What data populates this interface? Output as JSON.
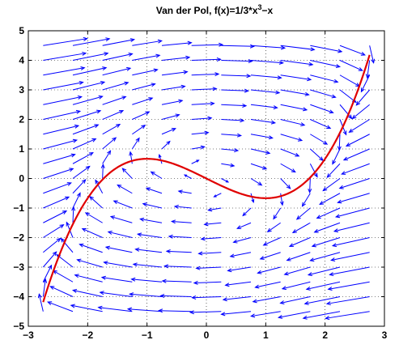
{
  "chart_data": {
    "type": "quiver",
    "title_main": "Van der Pol, f(x)=1/3*x",
    "title_sup": "3",
    "title_tail": "−x",
    "xlim": [
      -3,
      3
    ],
    "ylim": [
      -5,
      5
    ],
    "x_ticks": [
      -3,
      -2,
      -1,
      0,
      1,
      2,
      3
    ],
    "x_tick_labels": [
      "−3",
      "−2",
      "−1",
      "0",
      "1",
      "2",
      "3"
    ],
    "y_ticks": [
      -5,
      -4,
      -3,
      -2,
      -1,
      0,
      1,
      2,
      3,
      4,
      5
    ],
    "y_tick_labels": [
      "−5",
      "−4",
      "−3",
      "−2",
      "−1",
      "0",
      "1",
      "2",
      "3",
      "4",
      "5"
    ],
    "grid": true,
    "grid_style": "dotted",
    "vector_field": {
      "system": "x' = y - (x^3/3 - x), y' = -x",
      "x_range": [
        -2.75,
        2.75
      ],
      "x_count": 12,
      "y_range": [
        -4.5,
        4.5
      ],
      "y_count": 19,
      "color": "#0000ff"
    },
    "curve": {
      "function": "1/3*x^3 - x",
      "x_range": [
        -2.75,
        2.75
      ],
      "color": "#e00000"
    }
  }
}
